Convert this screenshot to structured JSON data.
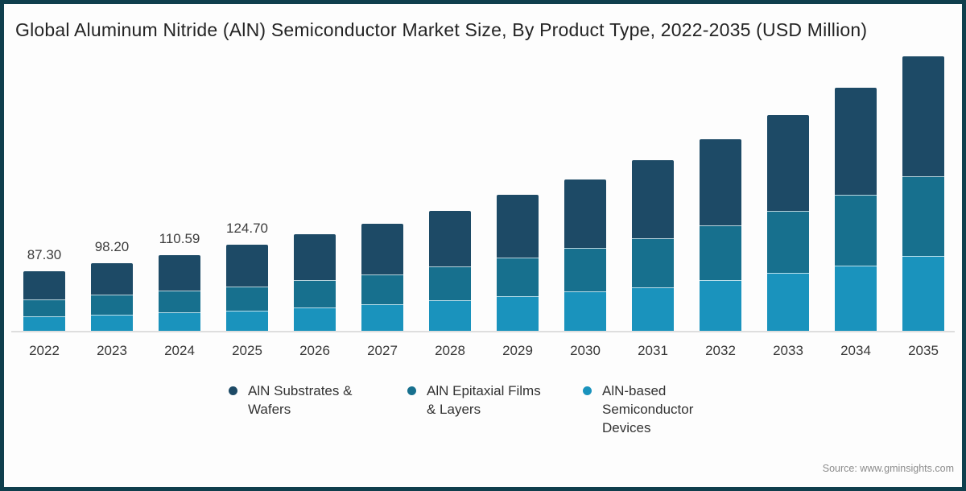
{
  "frame": {
    "border_color": "#0f3f4d",
    "background": "#fdfdfd"
  },
  "title": {
    "text": "Global Aluminum Nitride (AlN) Semiconductor Market Size, By Product Type, 2022-2035 (USD Million)"
  },
  "chart_data": {
    "type": "bar",
    "stacked": true,
    "title": "Global Aluminum Nitride (AlN) Semiconductor Market Size, By Product Type, 2022-2035 (USD Million)",
    "unit": "USD Million",
    "xlabel": "",
    "ylabel": "",
    "ylim": [
      0,
      420
    ],
    "grid": false,
    "legend_position": "bottom",
    "categories": [
      "2022",
      "2023",
      "2024",
      "2025",
      "2026",
      "2027",
      "2028",
      "2029",
      "2030",
      "2031",
      "2032",
      "2033",
      "2034",
      "2035"
    ],
    "series": [
      {
        "key": "devices",
        "name": "AlN-based Semiconductor Devices",
        "color": "#1a93bd",
        "values": [
          22.0,
          24.5,
          27.9,
          30.1,
          34.8,
          39.4,
          45.2,
          51.0,
          58.0,
          63.8,
          74.2,
          84.7,
          95.1,
          109.0
        ]
      },
      {
        "key": "films",
        "name": "AlN Epitaxial Films & Layers",
        "color": "#17708e",
        "values": [
          24.4,
          29.2,
          31.4,
          34.7,
          39.4,
          42.9,
          48.7,
          55.7,
          62.7,
          70.8,
          78.9,
          89.3,
          102.1,
          114.8
        ]
      },
      {
        "key": "substrates",
        "name": "AlN Substrates & Wafers",
        "color": "#1d4a66",
        "values": [
          40.9,
          44.5,
          51.29,
          59.9,
          66.1,
          73.1,
          80.0,
          90.5,
          98.5,
          112.5,
          124.1,
          138.0,
          154.3,
          172.8
        ]
      }
    ],
    "stacking_note": "series listed bottom-to-top",
    "totals": [
      87.3,
      98.2,
      110.59,
      124.7,
      140.3,
      155.4,
      173.9,
      197.2,
      219.2,
      247.1,
      277.2,
      312.0,
      351.5,
      396.6
    ],
    "total_labels": [
      "87.30",
      "98.20",
      "110.59",
      "124.70",
      "",
      "",
      "",
      "",
      "",
      "",
      "",
      "",
      "",
      ""
    ],
    "axis_line_color": "#dedede"
  },
  "legend": {
    "items": [
      {
        "key": "substrates",
        "label": "AlN Substrates &\nWafers",
        "color": "#1d4a66"
      },
      {
        "key": "films",
        "label": "AlN Epitaxial Films\n& Layers",
        "color": "#17708e"
      },
      {
        "key": "devices",
        "label": "AlN-based\nSemiconductor\nDevices",
        "color": "#1a93bd"
      }
    ]
  },
  "source": {
    "text": "Source: www.gminsights.com"
  }
}
